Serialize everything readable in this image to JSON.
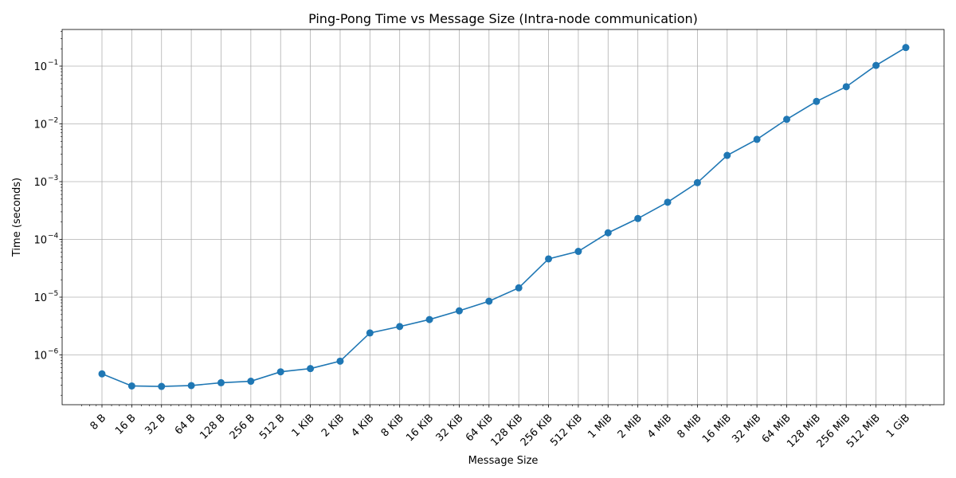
{
  "chart_data": {
    "type": "line",
    "title": "Ping-Pong Time vs Message Size (Intra-node communication)",
    "xlabel": "Message Size",
    "ylabel": "Time (seconds)",
    "xscale": "log2",
    "yscale": "log10",
    "grid": true,
    "legend": "none",
    "line_color": "#1f77b4",
    "marker": "circle",
    "categories": [
      "8 B",
      "16 B",
      "32 B",
      "64 B",
      "128 B",
      "256 B",
      "512 B",
      "1 KiB",
      "2 KiB",
      "4 KiB",
      "8 KiB",
      "16 KiB",
      "32 KiB",
      "64 KiB",
      "128 KiB",
      "256 KiB",
      "512 KiB",
      "1 MiB",
      "2 MiB",
      "4 MiB",
      "8 MiB",
      "16 MiB",
      "32 MiB",
      "64 MiB",
      "128 MiB",
      "256 MiB",
      "512 MiB",
      "1 GiB"
    ],
    "x_bytes": [
      8,
      16,
      32,
      64,
      128,
      256,
      512,
      1024,
      2048,
      4096,
      8192,
      16384,
      32768,
      65536,
      131072,
      262144,
      524288,
      1048576,
      2097152,
      4194304,
      8388608,
      16777216,
      33554432,
      67108864,
      134217728,
      268435456,
      536870912,
      1073741824
    ],
    "values": [
      4.7e-07,
      2.9e-07,
      2.85e-07,
      2.95e-07,
      3.3e-07,
      3.5e-07,
      5.1e-07,
      5.8e-07,
      7.8e-07,
      2.4e-06,
      3.1e-06,
      4.1e-06,
      5.8e-06,
      8.5e-06,
      1.45e-05,
      4.6e-05,
      6.2e-05,
      0.00013,
      0.00023,
      0.00044,
      0.00096,
      0.00285,
      0.0054,
      0.012,
      0.0245,
      0.044,
      0.103,
      0.21
    ],
    "y_ticks": [
      {
        "base": "10",
        "exp": "−6",
        "value": 1e-06
      },
      {
        "base": "10",
        "exp": "−5",
        "value": 1e-05
      },
      {
        "base": "10",
        "exp": "−4",
        "value": 0.0001
      },
      {
        "base": "10",
        "exp": "−3",
        "value": 0.001
      },
      {
        "base": "10",
        "exp": "−2",
        "value": 0.01
      },
      {
        "base": "10",
        "exp": "−1",
        "value": 0.1
      }
    ]
  }
}
